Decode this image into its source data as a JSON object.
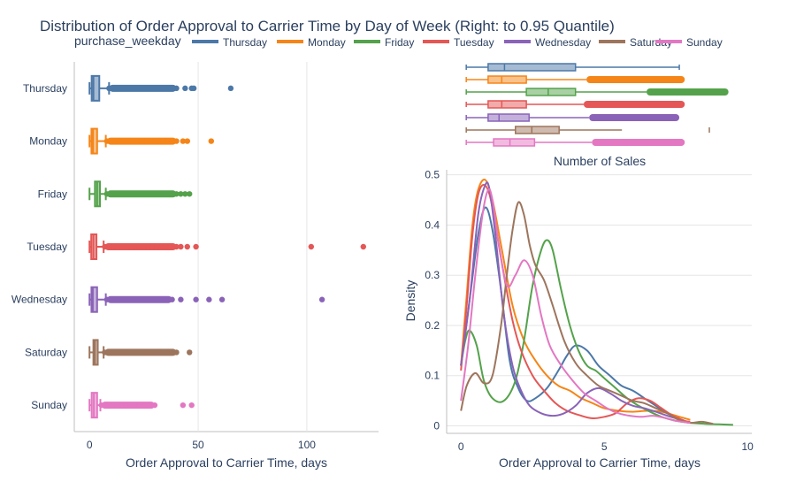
{
  "chart_data": {
    "title": "Distribution of Order Approval to Carrier Time by Day of Week (Right: to 0.95 Quantile)",
    "legend": {
      "title": "purchase_weekday",
      "placement": "top",
      "entries": [
        "Thursday",
        "Monday",
        "Friday",
        "Tuesday",
        "Wednesday",
        "Saturday",
        "Sunday"
      ]
    },
    "colors": {
      "Thursday": "#4c78a8",
      "Monday": "#f58518",
      "Friday": "#54a24b",
      "Tuesday": "#e45756",
      "Wednesday": "#8a63b8",
      "Saturday": "#9d755d",
      "Sunday": "#e377c2"
    },
    "charts": [
      {
        "type": "box",
        "orientation": "horizontal",
        "xlabel": "Order Approval to Carrier Time, days",
        "xticks": [
          0,
          50,
          100
        ],
        "xlim": [
          -7,
          133
        ],
        "categories": [
          "Thursday",
          "Monday",
          "Friday",
          "Tuesday",
          "Wednesday",
          "Saturday",
          "Sunday"
        ],
        "series": [
          {
            "name": "Thursday",
            "min": 0,
            "q1": 1,
            "median": 1.8,
            "q3": 4.5,
            "upper_fence": 9,
            "outliers": [
              9,
              10,
              12,
              14,
              16,
              18,
              20,
              22,
              24,
              26,
              28,
              30,
              32,
              34,
              36,
              38,
              40,
              44,
              47,
              48,
              65
            ]
          },
          {
            "name": "Monday",
            "min": 0,
            "q1": 0.9,
            "median": 1.6,
            "q3": 3.5,
            "upper_fence": 7.5,
            "outliers": [
              8,
              10,
              12,
              14,
              16,
              18,
              20,
              22,
              24,
              26,
              28,
              30,
              32,
              34,
              36,
              38,
              40,
              43,
              45,
              56
            ]
          },
          {
            "name": "Friday",
            "min": 0,
            "q1": 2.5,
            "median": 3.5,
            "q3": 4.8,
            "upper_fence": 7.5,
            "outliers": [
              8,
              10,
              12,
              14,
              16,
              18,
              20,
              22,
              24,
              26,
              28,
              30,
              32,
              34,
              38,
              40,
              42,
              44,
              46
            ]
          },
          {
            "name": "Tuesday",
            "min": 0,
            "q1": 0.8,
            "median": 1.8,
            "q3": 3.2,
            "upper_fence": 6.5,
            "outliers": [
              7,
              9,
              11,
              13,
              15,
              17,
              19,
              21,
              23,
              25,
              27,
              29,
              31,
              33,
              35,
              37,
              40,
              42,
              45,
              49,
              102,
              126
            ]
          },
          {
            "name": "Wednesday",
            "min": 0,
            "q1": 0.9,
            "median": 1.5,
            "q3": 3.5,
            "upper_fence": 7.5,
            "outliers": [
              8,
              10,
              12,
              14,
              16,
              18,
              20,
              22,
              24,
              26,
              28,
              30,
              32,
              34,
              36,
              38,
              42,
              49,
              55,
              61,
              107
            ]
          },
          {
            "name": "Saturday",
            "min": 0,
            "q1": 1.8,
            "median": 2.5,
            "q3": 3.8,
            "upper_fence": 6.5,
            "outliers": [
              7,
              9,
              11,
              13,
              15,
              17,
              19,
              21,
              23,
              25,
              27,
              29,
              31,
              33,
              36,
              38,
              40,
              46
            ]
          },
          {
            "name": "Sunday",
            "min": 0,
            "q1": 1,
            "median": 2,
            "q3": 3.5,
            "upper_fence": 5,
            "outliers": [
              5.5,
              7,
              9,
              11,
              13,
              15,
              17,
              19,
              21,
              23,
              25,
              27,
              30,
              43,
              47
            ]
          }
        ]
      },
      {
        "type": "box",
        "orientation": "horizontal",
        "subtitle": "Number of Sales",
        "xlim": [
          -0.2,
          10
        ],
        "categories": [
          "Thursday",
          "Monday",
          "Friday",
          "Tuesday",
          "Wednesday",
          "Saturday",
          "Sunday"
        ],
        "series": [
          {
            "name": "Thursday",
            "min": 0,
            "q1": 0.8,
            "median": 1.4,
            "q3": 4.0,
            "max": 7.8
          },
          {
            "name": "Monday",
            "min": 0,
            "q1": 0.8,
            "median": 1.3,
            "q3": 2.2,
            "whisker_hi": 4.4,
            "outliers_to": 8.0
          },
          {
            "name": "Friday",
            "min": 0,
            "q1": 2.2,
            "median": 3.0,
            "q3": 4.0,
            "whisker_hi": 6.6,
            "outliers_to": 9.6
          },
          {
            "name": "Tuesday",
            "min": 0,
            "q1": 0.8,
            "median": 1.3,
            "q3": 2.2,
            "whisker_hi": 4.3,
            "outliers_to": 8.0
          },
          {
            "name": "Wednesday",
            "min": 0,
            "q1": 0.8,
            "median": 1.2,
            "q3": 2.3,
            "whisker_hi": 4.5,
            "outliers_to": 7.8
          },
          {
            "name": "Saturday",
            "min": 0,
            "q1": 1.8,
            "median": 2.4,
            "q3": 3.4,
            "whisker_hi": 5.7,
            "max": 8.9
          },
          {
            "name": "Sunday",
            "min": 0,
            "q1": 1.0,
            "median": 1.6,
            "q3": 2.5,
            "whisker_hi": 4.6,
            "outliers_to": 8.0
          }
        ]
      },
      {
        "type": "line",
        "kind": "density",
        "xlabel": "Order Approval to Carrier Time, days",
        "ylabel": "Density",
        "xlim": [
          -0.5,
          10.15
        ],
        "ylim": [
          -0.015,
          0.51
        ],
        "xticks": [
          0,
          5,
          10
        ],
        "yticks": [
          0,
          0.1,
          0.2,
          0.3,
          0.4,
          0.5
        ],
        "ytick_labels": [
          "0",
          "0.1",
          "0.2",
          "0.3",
          "0.4",
          "0.5"
        ],
        "grid": true,
        "series": [
          {
            "name": "Thursday",
            "x": [
              0,
              0.3,
              0.6,
              0.85,
              1.1,
              1.4,
              1.7,
              2.0,
              2.3,
              2.6,
              3.0,
              3.4,
              3.7,
              4.0,
              4.4,
              4.8,
              5.2,
              5.6,
              6.0,
              6.4,
              6.8,
              7.2,
              7.6,
              7.8
            ],
            "y": [
              0.12,
              0.25,
              0.38,
              0.435,
              0.39,
              0.27,
              0.13,
              0.075,
              0.05,
              0.055,
              0.075,
              0.11,
              0.14,
              0.16,
              0.15,
              0.12,
              0.1,
              0.08,
              0.07,
              0.055,
              0.04,
              0.025,
              0.015,
              0.01
            ]
          },
          {
            "name": "Monday",
            "x": [
              0,
              0.2,
              0.4,
              0.6,
              0.85,
              1.1,
              1.4,
              1.8,
              2.2,
              2.6,
              3.0,
              3.4,
              3.8,
              4.2,
              4.6,
              5.0,
              5.5,
              6.0,
              6.5,
              7.0,
              7.5,
              8.0
            ],
            "y": [
              0.12,
              0.26,
              0.4,
              0.47,
              0.49,
              0.45,
              0.36,
              0.24,
              0.17,
              0.13,
              0.1,
              0.08,
              0.07,
              0.055,
              0.045,
              0.035,
              0.03,
              0.028,
              0.03,
              0.028,
              0.02,
              0.012
            ]
          },
          {
            "name": "Friday",
            "x": [
              0,
              0.15,
              0.3,
              0.55,
              0.8,
              1.1,
              1.5,
              1.9,
              2.2,
              2.5,
              2.8,
              3.0,
              3.2,
              3.5,
              3.8,
              4.1,
              4.4,
              4.7,
              5.0,
              5.4,
              5.8,
              6.2,
              6.6,
              7.0,
              7.5,
              8.0,
              8.5,
              9.0,
              9.5
            ],
            "y": [
              0.12,
              0.17,
              0.19,
              0.16,
              0.09,
              0.055,
              0.05,
              0.09,
              0.17,
              0.28,
              0.35,
              0.37,
              0.35,
              0.27,
              0.2,
              0.15,
              0.12,
              0.11,
              0.095,
              0.075,
              0.055,
              0.04,
              0.028,
              0.018,
              0.01,
              0.006,
              0.004,
              0.003,
              0.002
            ]
          },
          {
            "name": "Tuesday",
            "x": [
              0,
              0.2,
              0.4,
              0.6,
              0.8,
              1.0,
              1.2,
              1.5,
              1.8,
              2.1,
              2.5,
              2.9,
              3.3,
              3.7,
              4.2,
              4.6,
              5.0,
              5.4,
              5.8,
              6.2,
              6.6,
              7.0,
              7.4,
              7.8,
              8.0
            ],
            "y": [
              0.11,
              0.24,
              0.38,
              0.46,
              0.48,
              0.46,
              0.4,
              0.3,
              0.21,
              0.15,
              0.1,
              0.07,
              0.045,
              0.03,
              0.02,
              0.015,
              0.018,
              0.025,
              0.045,
              0.055,
              0.05,
              0.035,
              0.02,
              0.01,
              0.008
            ]
          },
          {
            "name": "Wednesday",
            "x": [
              0,
              0.3,
              0.6,
              0.85,
              1.0,
              1.2,
              1.5,
              1.8,
              2.1,
              2.4,
              2.8,
              3.2,
              3.6,
              4.0,
              4.4,
              4.8,
              5.2,
              5.6,
              6.0,
              6.4,
              6.8,
              7.2,
              7.5
            ],
            "y": [
              0.12,
              0.25,
              0.42,
              0.48,
              0.47,
              0.38,
              0.22,
              0.12,
              0.07,
              0.04,
              0.025,
              0.02,
              0.025,
              0.04,
              0.065,
              0.075,
              0.065,
              0.05,
              0.04,
              0.035,
              0.028,
              0.02,
              0.015
            ]
          },
          {
            "name": "Saturday",
            "x": [
              0,
              0.2,
              0.5,
              0.8,
              1.1,
              1.4,
              1.6,
              1.8,
              2.0,
              2.2,
              2.4,
              2.6,
              2.9,
              3.2,
              3.6,
              4.0,
              4.4,
              4.8,
              5.2,
              5.6,
              6.0,
              6.4,
              6.8,
              7.2,
              7.6,
              8.0,
              8.4,
              8.8
            ],
            "y": [
              0.03,
              0.08,
              0.105,
              0.085,
              0.1,
              0.2,
              0.3,
              0.39,
              0.445,
              0.42,
              0.36,
              0.32,
              0.29,
              0.24,
              0.17,
              0.125,
              0.1,
              0.08,
              0.07,
              0.06,
              0.05,
              0.045,
              0.035,
              0.025,
              0.012,
              0.006,
              0.008,
              0.004
            ]
          },
          {
            "name": "Sunday",
            "x": [
              0,
              0.25,
              0.5,
              0.75,
              0.95,
              1.1,
              1.3,
              1.6,
              1.9,
              2.2,
              2.5,
              2.8,
              3.1,
              3.5,
              3.9,
              4.3,
              4.7,
              5.1,
              5.5,
              5.9,
              6.3,
              6.7,
              7.1,
              7.5,
              8.0
            ],
            "y": [
              0.05,
              0.16,
              0.3,
              0.42,
              0.47,
              0.45,
              0.37,
              0.28,
              0.3,
              0.33,
              0.3,
              0.22,
              0.16,
              0.12,
              0.09,
              0.065,
              0.05,
              0.035,
              0.025,
              0.02,
              0.018,
              0.02,
              0.016,
              0.01,
              0.006
            ]
          }
        ]
      }
    ]
  }
}
